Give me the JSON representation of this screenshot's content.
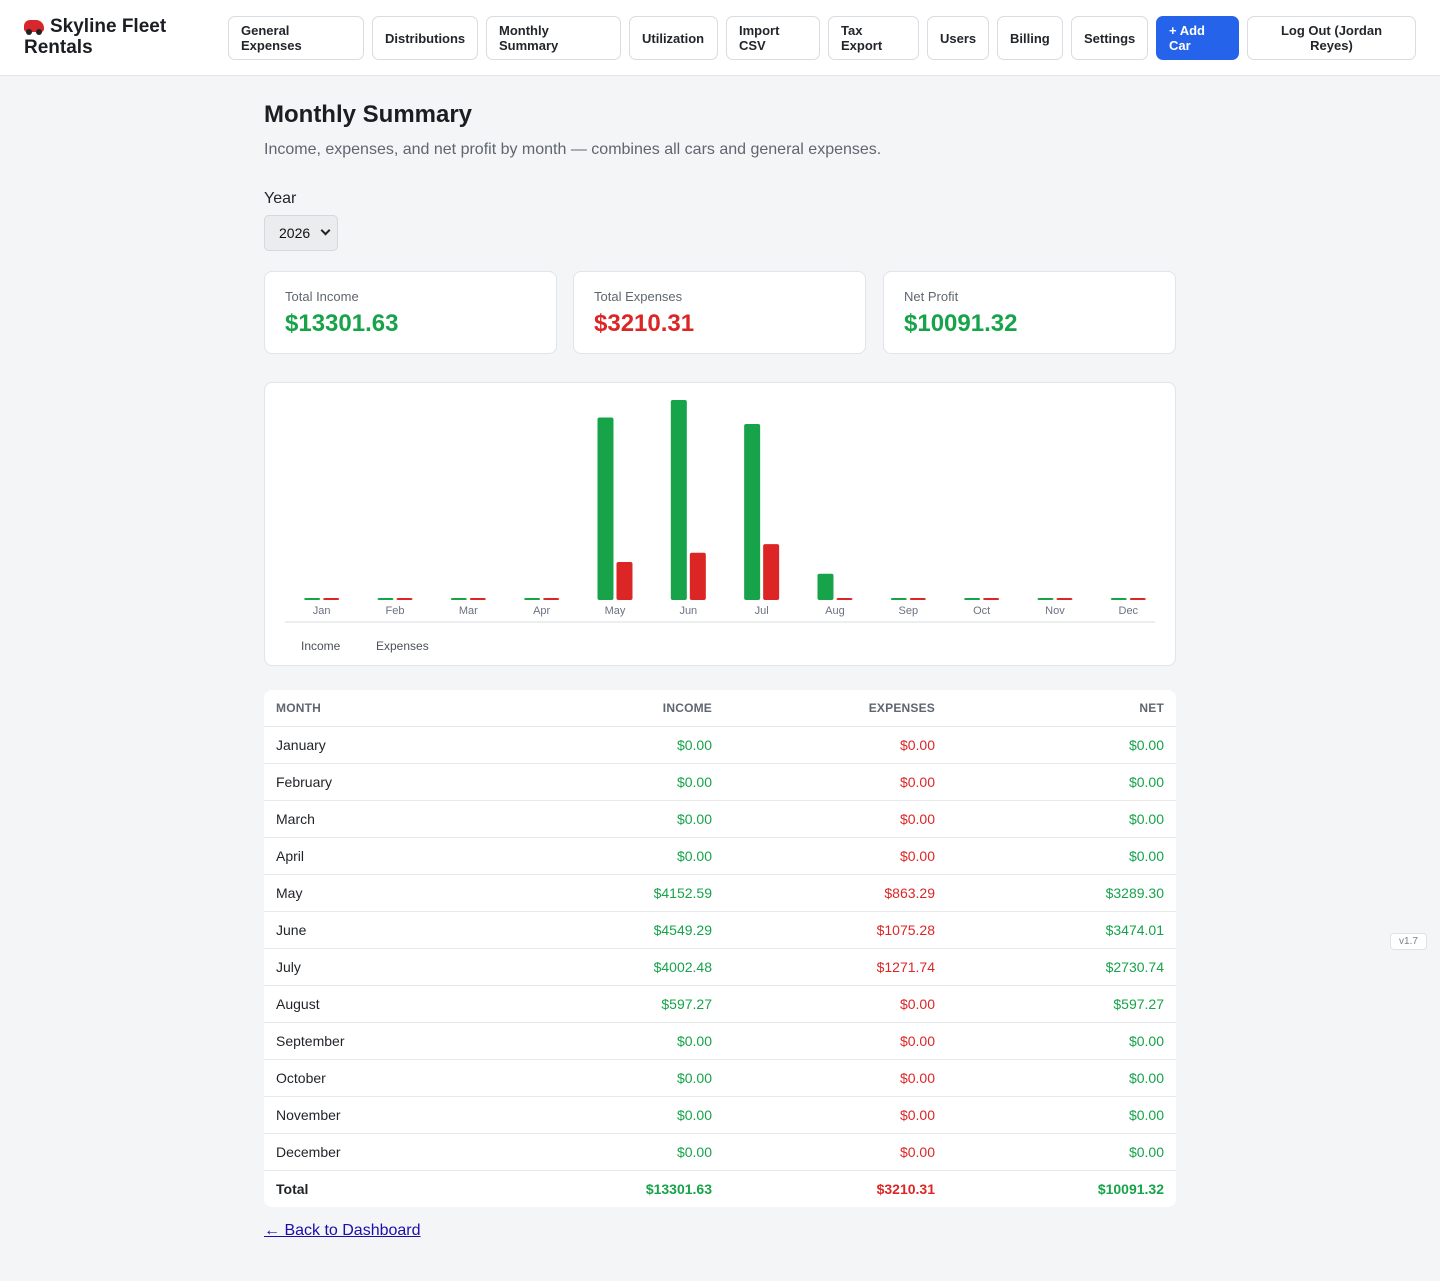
{
  "brand": {
    "name": "Skyline Fleet Rentals",
    "icon": "car-icon"
  },
  "nav": {
    "general_expenses": "General Expenses",
    "distributions": "Distributions",
    "monthly_summary": "Monthly Summary",
    "utilization": "Utilization",
    "import_csv": "Import CSV",
    "tax_export": "Tax Export",
    "users": "Users",
    "billing": "Billing",
    "settings": "Settings",
    "add_car": "+ Add Car",
    "logout": "Log Out (Jordan Reyes)"
  },
  "page": {
    "title": "Monthly Summary",
    "subtitle": "Income, expenses, and net profit by month — combines all cars and general expenses.",
    "year_label": "Year",
    "year_value": "2026"
  },
  "cards": {
    "income": {
      "label": "Total Income",
      "value": "$13301.63"
    },
    "expenses": {
      "label": "Total Expenses",
      "value": "$3210.31"
    },
    "net": {
      "label": "Net Profit",
      "value": "$10091.32"
    }
  },
  "colors": {
    "income": "#16a34a",
    "expenses": "#dc2626",
    "accent": "#2563eb"
  },
  "chart_data": {
    "type": "bar",
    "categories": [
      "Jan",
      "Feb",
      "Mar",
      "Apr",
      "May",
      "Jun",
      "Jul",
      "Aug",
      "Sep",
      "Oct",
      "Nov",
      "Dec"
    ],
    "series": [
      {
        "name": "Income",
        "values": [
          0,
          0,
          0,
          0,
          4152.59,
          4549.29,
          4002.48,
          597.27,
          0,
          0,
          0,
          0
        ]
      },
      {
        "name": "Expenses",
        "values": [
          0,
          0,
          0,
          0,
          863.29,
          1075.28,
          1271.74,
          0,
          0,
          0,
          0,
          0
        ]
      }
    ],
    "legend_position": "bottom-left",
    "grid": false
  },
  "table": {
    "headers": {
      "month": "Month",
      "income": "Income",
      "expenses": "Expenses",
      "net": "Net"
    },
    "rows": [
      {
        "month": "January",
        "income": "$0.00",
        "expenses": "$0.00",
        "net": "$0.00"
      },
      {
        "month": "February",
        "income": "$0.00",
        "expenses": "$0.00",
        "net": "$0.00"
      },
      {
        "month": "March",
        "income": "$0.00",
        "expenses": "$0.00",
        "net": "$0.00"
      },
      {
        "month": "April",
        "income": "$0.00",
        "expenses": "$0.00",
        "net": "$0.00"
      },
      {
        "month": "May",
        "income": "$4152.59",
        "expenses": "$863.29",
        "net": "$3289.30"
      },
      {
        "month": "June",
        "income": "$4549.29",
        "expenses": "$1075.28",
        "net": "$3474.01"
      },
      {
        "month": "July",
        "income": "$4002.48",
        "expenses": "$1271.74",
        "net": "$2730.74"
      },
      {
        "month": "August",
        "income": "$597.27",
        "expenses": "$0.00",
        "net": "$597.27"
      },
      {
        "month": "September",
        "income": "$0.00",
        "expenses": "$0.00",
        "net": "$0.00"
      },
      {
        "month": "October",
        "income": "$0.00",
        "expenses": "$0.00",
        "net": "$0.00"
      },
      {
        "month": "November",
        "income": "$0.00",
        "expenses": "$0.00",
        "net": "$0.00"
      },
      {
        "month": "December",
        "income": "$0.00",
        "expenses": "$0.00",
        "net": "$0.00"
      }
    ],
    "total": {
      "month": "Total",
      "income": "$13301.63",
      "expenses": "$3210.31",
      "net": "$10091.32"
    }
  },
  "back_link": "← Back to Dashboard",
  "version": "v1.7"
}
